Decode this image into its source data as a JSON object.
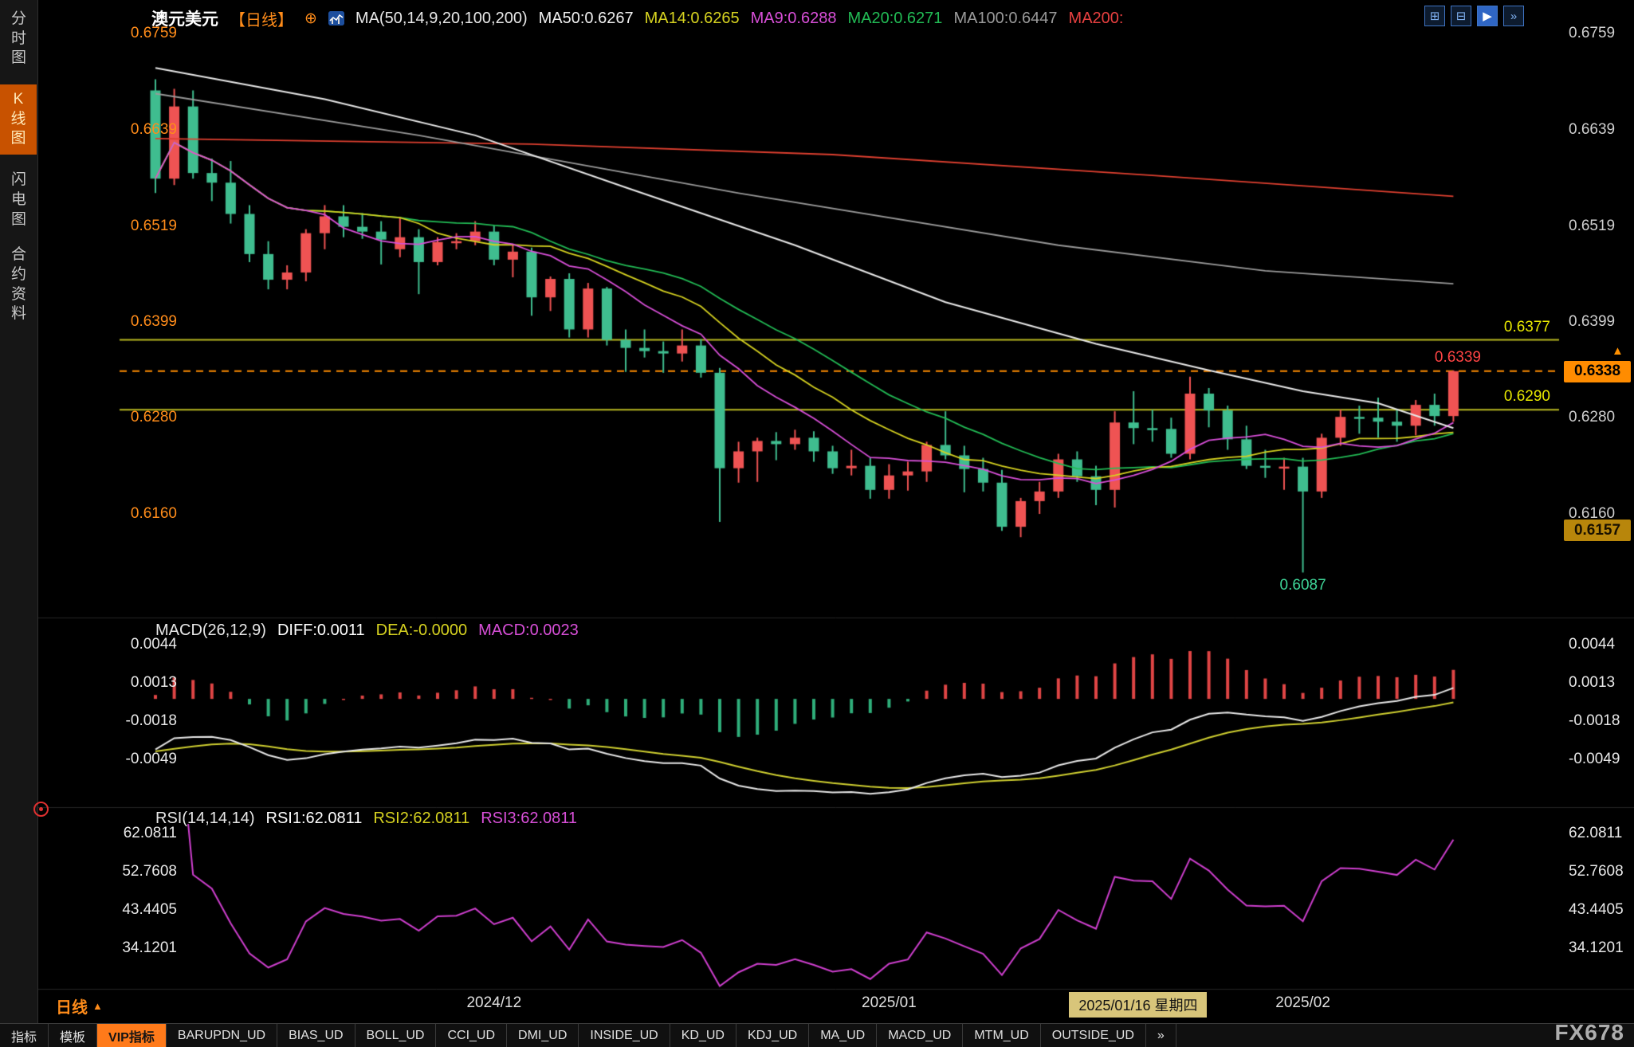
{
  "app": {
    "background": "#000000",
    "accent_orange": "#ff8c1a"
  },
  "sidebar": {
    "tabs": [
      {
        "label": "分时图",
        "active": false
      },
      {
        "label": "K线图",
        "active": true
      },
      {
        "label": "闪电图",
        "active": false
      },
      {
        "label": "合约资料",
        "active": false
      }
    ]
  },
  "header": {
    "symbol": "澳元美元",
    "period_tag": "【日线】",
    "add_icon_glyph": "⊕",
    "ma_label": "MA(50,14,9,20,100,200)",
    "ma_values": [
      {
        "label": "MA50:0.6267",
        "color": "#f0f0f0"
      },
      {
        "label": "MA14:0.6265",
        "color": "#d6d220"
      },
      {
        "label": "MA9:0.6288",
        "color": "#d84fd8"
      },
      {
        "label": "MA20:0.6271",
        "color": "#22bb55"
      },
      {
        "label": "MA100:0.6447",
        "color": "#9a9a9a"
      },
      {
        "label": "MA200:",
        "color": "#e84040"
      }
    ],
    "layout_icons": [
      {
        "name": "quad-layout-icon",
        "glyph": "⊞"
      },
      {
        "name": "split-layout-icon",
        "glyph": "⊟"
      },
      {
        "name": "play-icon",
        "glyph": "▶",
        "filled": true
      },
      {
        "name": "next-chart-icon",
        "glyph": "»"
      }
    ]
  },
  "price_axis": {
    "left_color": "#ff8c1a",
    "right_color": "#cfcfcf",
    "labels": [
      "0.6759",
      "0.6639",
      "0.6519",
      "0.6399",
      "0.6280",
      "0.6160"
    ]
  },
  "annotations": {
    "resistance_label": "0.6377",
    "support_label": "0.6290",
    "high_label": "0.6339",
    "current_tag": "0.6338",
    "low_tag": "0.6157",
    "low_annotation": "0.6087",
    "up_arrow_glyph": "▲"
  },
  "macd_panel": {
    "title": "MACD(26,12,9)",
    "items": [
      {
        "label": "DIFF:0.0011",
        "color": "#ffffff"
      },
      {
        "label": "DEA:-0.0000",
        "color": "#d6d220"
      },
      {
        "label": "MACD:0.0023",
        "color": "#d84fd8"
      }
    ],
    "axis_labels": [
      "0.0044",
      "0.0013",
      "-0.0018",
      "-0.0049"
    ]
  },
  "rsi_panel": {
    "title": "RSI(14,14,14)",
    "items": [
      {
        "label": "RSI1:62.0811",
        "color": "#ffffff"
      },
      {
        "label": "RSI2:62.0811",
        "color": "#d6d220"
      },
      {
        "label": "RSI3:62.0811",
        "color": "#d84fd8"
      }
    ],
    "axis_labels": [
      "62.0811",
      "52.7608",
      "43.4405",
      "34.1201"
    ]
  },
  "time_axis": {
    "ticks": [
      {
        "label": "2024/12",
        "index": 18
      },
      {
        "label": "2025/01",
        "index": 39
      },
      {
        "label": "2025/02",
        "index": 61
      }
    ],
    "highlight": {
      "label": "2025/01/16 星期四",
      "index": 49
    }
  },
  "footer": {
    "period_label": "日线",
    "period_arrow": "▲",
    "brand": "FX678",
    "tabs": [
      {
        "label": "指标",
        "active": false
      },
      {
        "label": "模板",
        "active": false
      },
      {
        "label": "VIP指标",
        "active": true
      },
      {
        "label": "BARUPDN_UD",
        "active": false
      },
      {
        "label": "BIAS_UD",
        "active": false
      },
      {
        "label": "BOLL_UD",
        "active": false
      },
      {
        "label": "CCI_UD",
        "active": false
      },
      {
        "label": "DMI_UD",
        "active": false
      },
      {
        "label": "INSIDE_UD",
        "active": false
      },
      {
        "label": "KD_UD",
        "active": false
      },
      {
        "label": "KDJ_UD",
        "active": false
      },
      {
        "label": "MA_UD",
        "active": false
      },
      {
        "label": "MACD_UD",
        "active": false
      },
      {
        "label": "MTM_UD",
        "active": false
      },
      {
        "label": "OUTSIDE_UD",
        "active": false
      },
      {
        "label": "»",
        "active": false
      }
    ]
  },
  "chart_data": {
    "type": "candlestick",
    "symbol": "澳元美元 AUD/USD",
    "interval": "日线",
    "y_ticks": [
      0.6759,
      0.6639,
      0.6519,
      0.6399,
      0.628,
      0.616
    ],
    "candles": [
      [
        0.6688,
        0.6702,
        0.656,
        0.6578
      ],
      [
        0.6578,
        0.669,
        0.657,
        0.6668
      ],
      [
        0.6668,
        0.6688,
        0.6578,
        0.6585
      ],
      [
        0.6585,
        0.6603,
        0.655,
        0.6573
      ],
      [
        0.6573,
        0.66,
        0.6522,
        0.6534
      ],
      [
        0.6534,
        0.6545,
        0.6474,
        0.6484
      ],
      [
        0.6484,
        0.65,
        0.644,
        0.6452
      ],
      [
        0.6452,
        0.647,
        0.644,
        0.6461
      ],
      [
        0.6461,
        0.6515,
        0.645,
        0.651
      ],
      [
        0.651,
        0.6545,
        0.649,
        0.6531
      ],
      [
        0.6531,
        0.6545,
        0.6505,
        0.6518
      ],
      [
        0.6518,
        0.6535,
        0.6503,
        0.6512
      ],
      [
        0.6512,
        0.6525,
        0.6471,
        0.6502
      ],
      [
        0.649,
        0.653,
        0.648,
        0.6505
      ],
      [
        0.6505,
        0.6515,
        0.6434,
        0.6474
      ],
      [
        0.6474,
        0.6505,
        0.647,
        0.6499
      ],
      [
        0.6499,
        0.651,
        0.649,
        0.65
      ],
      [
        0.65,
        0.6525,
        0.6495,
        0.6512
      ],
      [
        0.6512,
        0.652,
        0.647,
        0.6477
      ],
      [
        0.6477,
        0.6495,
        0.6455,
        0.6487
      ],
      [
        0.6487,
        0.6492,
        0.6407,
        0.643
      ],
      [
        0.643,
        0.6456,
        0.6413,
        0.6453
      ],
      [
        0.6453,
        0.646,
        0.638,
        0.639
      ],
      [
        0.639,
        0.6448,
        0.638,
        0.6441
      ],
      [
        0.6441,
        0.6443,
        0.637,
        0.6377
      ],
      [
        0.6377,
        0.639,
        0.6337,
        0.6367
      ],
      [
        0.6367,
        0.639,
        0.6355,
        0.6363
      ],
      [
        0.6363,
        0.6375,
        0.6336,
        0.636
      ],
      [
        0.636,
        0.639,
        0.635,
        0.637
      ],
      [
        0.637,
        0.6378,
        0.633,
        0.6336
      ],
      [
        0.6336,
        0.6342,
        0.615,
        0.6217
      ],
      [
        0.6217,
        0.625,
        0.6199,
        0.6238
      ],
      [
        0.6238,
        0.6255,
        0.62,
        0.6251
      ],
      [
        0.6251,
        0.6262,
        0.6227,
        0.6247
      ],
      [
        0.6247,
        0.6265,
        0.624,
        0.6255
      ],
      [
        0.6255,
        0.6263,
        0.6225,
        0.6238
      ],
      [
        0.6238,
        0.6245,
        0.621,
        0.6217
      ],
      [
        0.6217,
        0.624,
        0.6208,
        0.622
      ],
      [
        0.622,
        0.623,
        0.6179,
        0.619
      ],
      [
        0.619,
        0.6222,
        0.6179,
        0.6208
      ],
      [
        0.6208,
        0.6225,
        0.6189,
        0.6213
      ],
      [
        0.6213,
        0.625,
        0.62,
        0.6246
      ],
      [
        0.6246,
        0.6288,
        0.6228,
        0.6233
      ],
      [
        0.6233,
        0.6245,
        0.6187,
        0.6216
      ],
      [
        0.6216,
        0.623,
        0.6188,
        0.6199
      ],
      [
        0.6199,
        0.6215,
        0.6139,
        0.6144
      ],
      [
        0.6144,
        0.618,
        0.6131,
        0.6176
      ],
      [
        0.6176,
        0.62,
        0.616,
        0.6188
      ],
      [
        0.6188,
        0.6235,
        0.618,
        0.6228
      ],
      [
        0.6228,
        0.6238,
        0.62,
        0.6207
      ],
      [
        0.6207,
        0.622,
        0.6171,
        0.619
      ],
      [
        0.619,
        0.6288,
        0.6168,
        0.6274
      ],
      [
        0.6274,
        0.6313,
        0.6247,
        0.6267
      ],
      [
        0.6267,
        0.629,
        0.625,
        0.6266
      ],
      [
        0.6266,
        0.628,
        0.623,
        0.6235
      ],
      [
        0.6235,
        0.6331,
        0.6228,
        0.631
      ],
      [
        0.631,
        0.6317,
        0.6268,
        0.6289
      ],
      [
        0.6289,
        0.6295,
        0.624,
        0.6253
      ],
      [
        0.6253,
        0.627,
        0.6216,
        0.622
      ],
      [
        0.622,
        0.624,
        0.6205,
        0.6218
      ],
      [
        0.6218,
        0.623,
        0.619,
        0.6219
      ],
      [
        0.6219,
        0.623,
        0.6087,
        0.6188
      ],
      [
        0.6188,
        0.626,
        0.618,
        0.6255
      ],
      [
        0.6255,
        0.629,
        0.6245,
        0.6281
      ],
      [
        0.6281,
        0.6295,
        0.626,
        0.628
      ],
      [
        0.628,
        0.6305,
        0.6255,
        0.6275
      ],
      [
        0.6275,
        0.629,
        0.625,
        0.627
      ],
      [
        0.627,
        0.6302,
        0.6258,
        0.6296
      ],
      [
        0.6296,
        0.631,
        0.627,
        0.6282
      ],
      [
        0.6282,
        0.6339,
        0.6275,
        0.6338
      ]
    ],
    "colors": {
      "up": "#ef5353",
      "down": "#3fbd8f"
    },
    "overlays": {
      "ma9": {
        "period": 9,
        "color": "#d84fd8"
      },
      "ma14": {
        "period": 14,
        "color": "#d6d220"
      },
      "ma20": {
        "period": 20,
        "color": "#22bb55"
      },
      "ma50": {
        "color": "#e8e8e8",
        "points": [
          [
            0,
            0.6716
          ],
          [
            9,
            0.6677
          ],
          [
            17,
            0.6632
          ],
          [
            25,
            0.6567
          ],
          [
            34,
            0.6495
          ],
          [
            42,
            0.6424
          ],
          [
            50,
            0.6372
          ],
          [
            56,
            0.6339
          ],
          [
            61,
            0.6313
          ],
          [
            65,
            0.6298
          ],
          [
            69,
            0.6267
          ]
        ]
      },
      "ma100": {
        "color": "#9a9a9a",
        "points": [
          [
            0,
            0.6684
          ],
          [
            14,
            0.6632
          ],
          [
            31,
            0.656
          ],
          [
            48,
            0.6495
          ],
          [
            59,
            0.6463
          ],
          [
            69,
            0.6447
          ]
        ]
      },
      "ma200": {
        "color": "#e04030",
        "points": [
          [
            0,
            0.6628
          ],
          [
            20,
            0.6621
          ],
          [
            36,
            0.6608
          ],
          [
            53,
            0.6582
          ],
          [
            69,
            0.6556
          ]
        ]
      }
    },
    "levels": {
      "resistance": 0.6377,
      "support": 0.629,
      "last": 0.6338,
      "high": 0.6339,
      "spike_low": 0.6087,
      "marked_low": 0.6157
    },
    "macd": {
      "fast": 12,
      "slow": 26,
      "signal": 9,
      "axis_ticks": [
        0.0044,
        0.0013,
        -0.0018,
        -0.0049
      ],
      "hist_up_color": "#e04545",
      "hist_down_color": "#2fae7a",
      "diff_color": "#e8e8e8",
      "dea_color": "#cfcf30"
    },
    "rsi": {
      "period": 14,
      "axis_ticks": [
        62.0811,
        52.7608,
        43.4405,
        34.1201
      ],
      "color": "#cf3fcf"
    },
    "x_ticks": [
      {
        "index": 18,
        "label": "2024/12"
      },
      {
        "index": 39,
        "label": "2025/01"
      },
      {
        "index": 61,
        "label": "2025/02"
      }
    ]
  }
}
